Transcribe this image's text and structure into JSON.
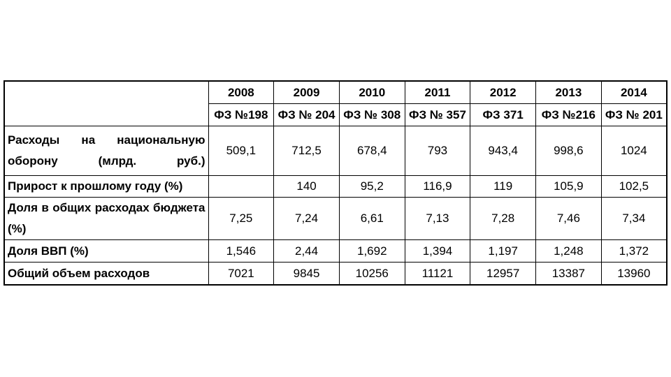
{
  "table": {
    "years": [
      "2008",
      "2009",
      "2010",
      "2011",
      "2012",
      "2013",
      "2014"
    ],
    "laws": [
      "ФЗ №198",
      "ФЗ № 204",
      "ФЗ № 308",
      "ФЗ № 357",
      "ФЗ 371",
      "ФЗ №216",
      "ФЗ № 201"
    ],
    "rows": [
      {
        "label": "Расходы на национальную оборону (млрд. руб.)",
        "cells": [
          "509,1",
          "712,5",
          "678,4",
          "793",
          "943,4",
          "998,6",
          "1024"
        ]
      },
      {
        "label": "Прирост к прошлому году (%)",
        "cells": [
          null,
          "140",
          "95,2",
          "116,9",
          "119",
          "105,9",
          "102,5"
        ]
      },
      {
        "label": "Доля в общих расходах бюджета (%)",
        "cells": [
          "7,25",
          "7,24",
          "6,61",
          "7,13",
          "7,28",
          "7,46",
          "7,34"
        ]
      },
      {
        "label": "Доля ВВП (%)",
        "cells": [
          "1,546",
          "2,44",
          "1,692",
          "1,394",
          "1,197",
          "1,248",
          "1,372"
        ]
      },
      {
        "label": "Общий объем расходов",
        "cells": [
          "7021",
          "9845",
          "10256",
          "11121",
          "12957",
          "13387",
          "13960"
        ]
      }
    ]
  }
}
